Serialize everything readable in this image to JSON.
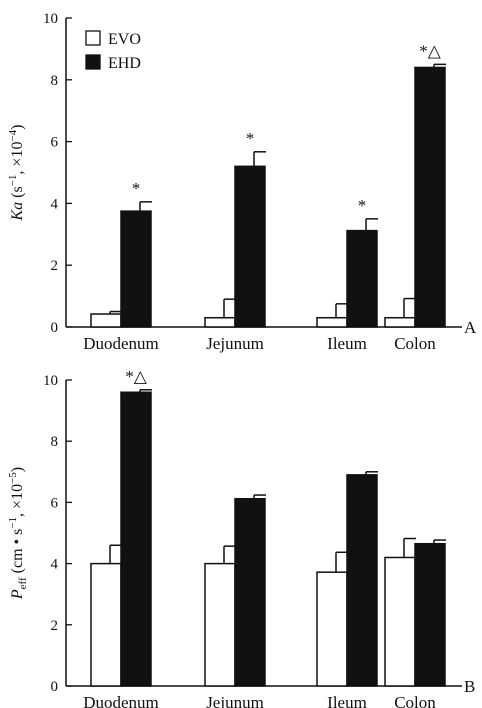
{
  "legend": {
    "entries": [
      {
        "label": "EVO",
        "fill": "#ffffff"
      },
      {
        "label": "EHD",
        "fill": "#111111"
      }
    ]
  },
  "chart_data": [
    {
      "type": "bar",
      "panel": "A",
      "categories": [
        "Duodenum",
        "Jejunum",
        "Ileum",
        "Colon"
      ],
      "ylabel": "Ka (s−1, ×10−4)",
      "ylabel_parts": {
        "symbol": "Ka",
        "prefix": " (s",
        "sup1": "−1",
        "middle": ", ×10",
        "sup2": "−4",
        "suffix": ")"
      },
      "ylim": [
        0,
        10
      ],
      "yticks": [
        "0",
        "2",
        "4",
        "6",
        "8",
        "10"
      ],
      "series": [
        {
          "name": "EVO",
          "values": [
            0.42,
            0.3,
            0.3,
            0.3
          ],
          "errors": [
            0.08,
            0.6,
            0.45,
            0.62
          ]
        },
        {
          "name": "EHD",
          "values": [
            3.75,
            5.2,
            3.12,
            8.4
          ],
          "errors": [
            0.3,
            0.47,
            0.38,
            0.1
          ]
        }
      ],
      "annotations": [
        "*",
        "*",
        "*",
        "*△"
      ]
    },
    {
      "type": "bar",
      "panel": "B",
      "categories": [
        "Duodenum",
        "Jejunum",
        "Ileum",
        "Colon"
      ],
      "ylabel": "Peff (cm • s−1, ×10−5)",
      "ylabel_parts": {
        "symbol": "P",
        "sub": "eff",
        "prefix": " (cm • s",
        "sup1": "−1",
        "middle": ", ×10",
        "sup2": "−5",
        "suffix": ")"
      },
      "ylim": [
        0,
        10
      ],
      "yticks": [
        "0",
        "2",
        "4",
        "6",
        "8",
        "10"
      ],
      "series": [
        {
          "name": "EVO",
          "values": [
            4.0,
            4.0,
            3.72,
            4.2
          ],
          "errors": [
            0.6,
            0.57,
            0.65,
            0.62
          ]
        },
        {
          "name": "EHD",
          "values": [
            9.6,
            6.12,
            6.9,
            4.65
          ],
          "errors": [
            0.08,
            0.12,
            0.1,
            0.12
          ]
        }
      ],
      "annotations": [
        "*△",
        "",
        "",
        ""
      ]
    }
  ]
}
